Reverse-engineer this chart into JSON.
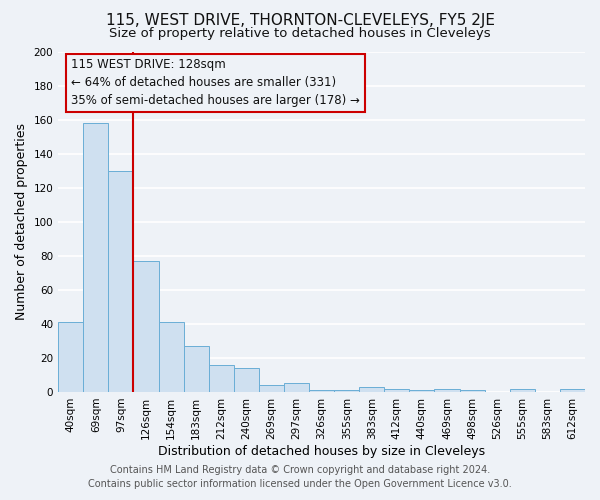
{
  "title": "115, WEST DRIVE, THORNTON-CLEVELEYS, FY5 2JE",
  "subtitle": "Size of property relative to detached houses in Cleveleys",
  "xlabel": "Distribution of detached houses by size in Cleveleys",
  "ylabel": "Number of detached properties",
  "bar_labels": [
    "40sqm",
    "69sqm",
    "97sqm",
    "126sqm",
    "154sqm",
    "183sqm",
    "212sqm",
    "240sqm",
    "269sqm",
    "297sqm",
    "326sqm",
    "355sqm",
    "383sqm",
    "412sqm",
    "440sqm",
    "469sqm",
    "498sqm",
    "526sqm",
    "555sqm",
    "583sqm",
    "612sqm"
  ],
  "bar_values": [
    41,
    158,
    130,
    77,
    41,
    27,
    16,
    14,
    4,
    5,
    1,
    1,
    3,
    2,
    1,
    2,
    1,
    0,
    2,
    0,
    2
  ],
  "bar_color": "#cfe0f0",
  "bar_edgecolor": "#6aaed6",
  "ylim": [
    0,
    200
  ],
  "yticks": [
    0,
    20,
    40,
    60,
    80,
    100,
    120,
    140,
    160,
    180,
    200
  ],
  "vline_color": "#cc0000",
  "annotation_box_color": "#cc0000",
  "annotation_line1": "115 WEST DRIVE: 128sqm",
  "annotation_line2": "← 64% of detached houses are smaller (331)",
  "annotation_line3": "35% of semi-detached houses are larger (178) →",
  "footer_line1": "Contains HM Land Registry data © Crown copyright and database right 2024.",
  "footer_line2": "Contains public sector information licensed under the Open Government Licence v3.0.",
  "bg_color": "#eef2f7",
  "grid_color": "#ffffff",
  "title_fontsize": 11,
  "subtitle_fontsize": 9.5,
  "axis_label_fontsize": 9,
  "tick_fontsize": 7.5,
  "annotation_fontsize": 8.5,
  "footer_fontsize": 7
}
